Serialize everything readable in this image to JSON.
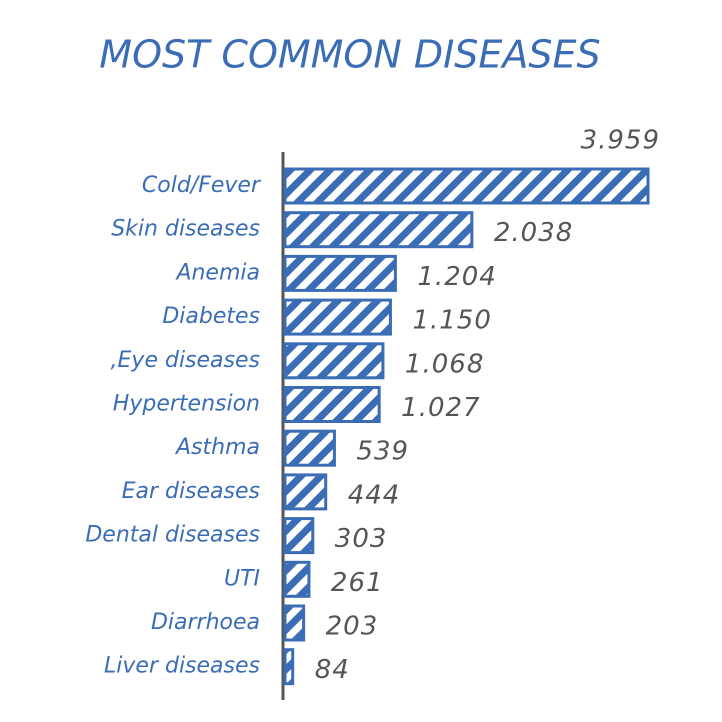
{
  "chart_data": {
    "type": "bar",
    "orientation": "horizontal",
    "title": "MOST COMMON DISEASES",
    "categories": [
      "Cold/Fever",
      "Skin diseases",
      "Anemia",
      "Diabetes",
      ",Eye diseases",
      "Hypertension",
      "Asthma",
      "Ear diseases",
      "Dental diseases",
      "UTI",
      "Diarrhoea",
      "Liver diseases"
    ],
    "values": [
      3959,
      2038,
      1204,
      1150,
      1068,
      1027,
      539,
      444,
      303,
      261,
      203,
      84
    ],
    "value_labels": [
      "3.959",
      "2.038",
      "1.204",
      "1.150",
      "1.068",
      "1.027",
      "539",
      "444",
      "303",
      "261",
      "203",
      "84"
    ],
    "color": "#3a6db5"
  }
}
